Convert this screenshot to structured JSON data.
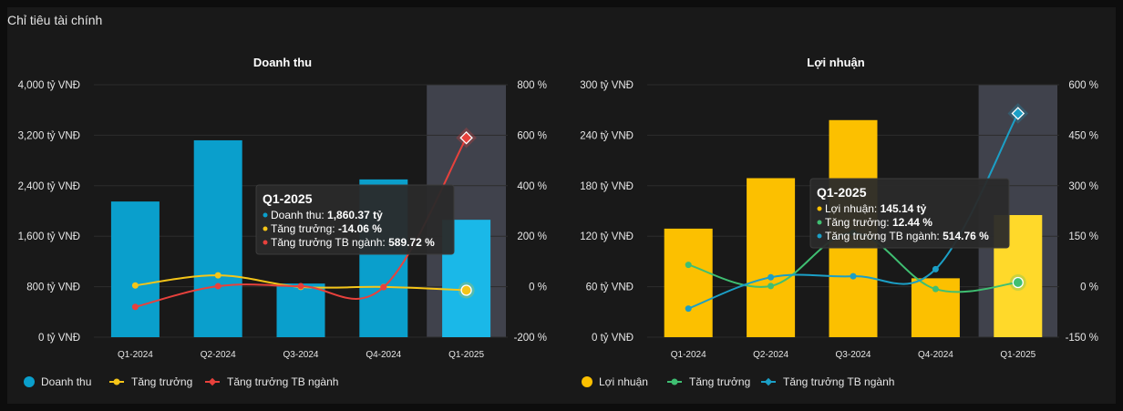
{
  "page_title": "Chỉ tiêu tài chính",
  "chart_data": [
    {
      "type": "bar",
      "title": "Doanh thu",
      "categories": [
        "Q1-2024",
        "Q2-2024",
        "Q3-2024",
        "Q4-2024",
        "Q1-2025"
      ],
      "y_left_ticks": [
        "0 tỷ VNĐ",
        "800 tỷ VNĐ",
        "1,600 tỷ VNĐ",
        "2,400 tỷ VNĐ",
        "3,200 tỷ VNĐ",
        "4,000 tỷ VNĐ"
      ],
      "y_right_ticks": [
        "-200 %",
        "0 %",
        "200 %",
        "400 %",
        "600 %",
        "800 %"
      ],
      "ylim_left": [
        0,
        4000
      ],
      "ylim_right": [
        -200,
        800
      ],
      "highlighted_category": "Q1-2025",
      "series": [
        {
          "name": "Doanh thu",
          "kind": "bar",
          "axis": "left",
          "color": "#0a9fcc",
          "highlight_color": "#1ab8e8",
          "values": [
            2150,
            3120,
            850,
            2500,
            1860.37
          ]
        },
        {
          "name": "Tăng trưởng",
          "kind": "line",
          "axis": "right",
          "color": "#f5c518",
          "values": [
            5,
            45,
            -1,
            -1,
            -14.06
          ]
        },
        {
          "name": "Tăng trưởng TB ngành",
          "kind": "line",
          "axis": "right",
          "color": "#e8413c",
          "values": [
            -80,
            2,
            2,
            -2,
            589.72
          ]
        }
      ],
      "tooltip": {
        "title": "Q1-2025",
        "rows": [
          {
            "label": "Doanh thu: ",
            "value": "1,860.37 tỷ",
            "color": "#0a9fcc"
          },
          {
            "label": "Tăng trưởng: ",
            "value": "-14.06 %",
            "color": "#f5c518"
          },
          {
            "label": "Tăng trưởng TB ngành: ",
            "value": "589.72 %",
            "color": "#e8413c"
          }
        ]
      },
      "legend": [
        "Doanh thu",
        "Tăng trưởng",
        "Tăng trưởng TB ngành"
      ]
    },
    {
      "type": "bar",
      "title": "Lợi nhuận",
      "categories": [
        "Q1-2024",
        "Q2-2024",
        "Q3-2024",
        "Q4-2024",
        "Q1-2025"
      ],
      "y_left_ticks": [
        "0 tỷ VNĐ",
        "60 tỷ VNĐ",
        "120 tỷ VNĐ",
        "180 tỷ VNĐ",
        "240 tỷ VNĐ",
        "300 tỷ VNĐ"
      ],
      "y_right_ticks": [
        "-150 %",
        "0 %",
        "150 %",
        "300 %",
        "450 %",
        "600 %"
      ],
      "ylim_left": [
        0,
        300
      ],
      "ylim_right": [
        -150,
        600
      ],
      "highlighted_category": "Q1-2025",
      "series": [
        {
          "name": "Lợi nhuận",
          "kind": "bar",
          "axis": "left",
          "color": "#fcc000",
          "highlight_color": "#ffd92a",
          "values": [
            129,
            189,
            258,
            70,
            145.14
          ]
        },
        {
          "name": "Tăng trưởng",
          "kind": "line",
          "axis": "right",
          "color": "#3fbf72",
          "values": [
            65,
            2,
            160,
            -7,
            12.44
          ]
        },
        {
          "name": "Tăng trưởng TB ngành",
          "kind": "line",
          "axis": "right",
          "color": "#1b9fc6",
          "values": [
            -65,
            28,
            31,
            52,
            514.76
          ]
        }
      ],
      "tooltip": {
        "title": "Q1-2025",
        "rows": [
          {
            "label": "Lợi nhuận: ",
            "value": "145.14 tỷ",
            "color": "#fcc000"
          },
          {
            "label": "Tăng trưởng: ",
            "value": "12.44 %",
            "color": "#3fbf72"
          },
          {
            "label": "Tăng trưởng TB ngành: ",
            "value": "514.76 %",
            "color": "#1b9fc6"
          }
        ]
      },
      "legend": [
        "Lợi nhuận",
        "Tăng trưởng",
        "Tăng trưởng TB ngành"
      ]
    }
  ]
}
